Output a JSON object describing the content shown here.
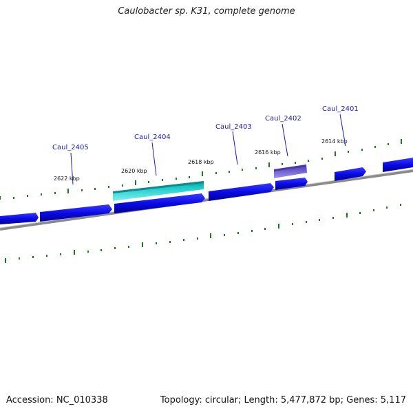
{
  "title": "Caulobacter sp. K31, complete genome",
  "footer": {
    "accession": "Accession: NC_010338",
    "summary": "Topology: circular; Length: 5,477,872 bp; Genes: 5,117"
  },
  "scale_labels": [
    "2622 kbp",
    "2620 kbp",
    "2618 kbp",
    "2616 kbp",
    "2614 kbp"
  ],
  "gene_labels": [
    "Caul_2405",
    "Caul_2404",
    "Caul_2403",
    "Caul_2402",
    "Caul_2401"
  ],
  "colors": {
    "cds_forward": "#0a0ae6",
    "highlight_teal": "#19c8c8",
    "highlight_purple": "#6a5acd",
    "backbone": "#8a8a8a",
    "ticks": "#1a7a1a",
    "label_line": "#1a1ab4"
  }
}
